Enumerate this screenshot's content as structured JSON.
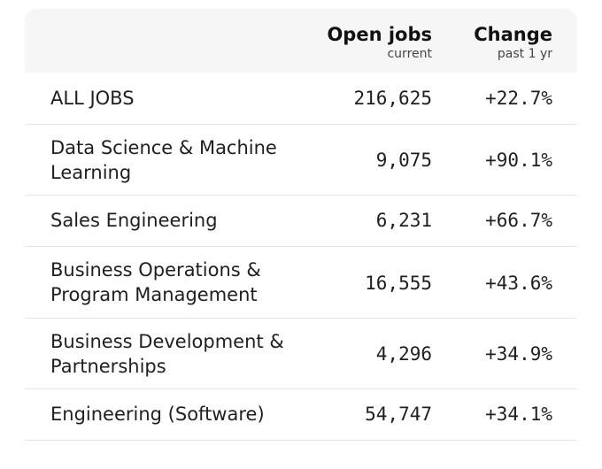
{
  "table": {
    "columns": {
      "open_jobs": {
        "title": "Open jobs",
        "subtitle": "current"
      },
      "change": {
        "title": "Change",
        "subtitle": "past 1 yr"
      }
    },
    "rows": [
      {
        "category": "ALL JOBS",
        "open_jobs": "216,625",
        "change": "+22.7%"
      },
      {
        "category": "Data Science & Machine Learning",
        "open_jobs": "9,075",
        "change": "+90.1%"
      },
      {
        "category": "Sales Engineering",
        "open_jobs": "6,231",
        "change": "+66.7%"
      },
      {
        "category": "Business Operations & Program Management",
        "open_jobs": "16,555",
        "change": "+43.6%"
      },
      {
        "category": "Business Development & Partnerships",
        "open_jobs": "4,296",
        "change": "+34.9%"
      },
      {
        "category": "Engineering (Software)",
        "open_jobs": "54,747",
        "change": "+34.1%"
      }
    ]
  },
  "colors": {
    "header_background": "#f6f6f6",
    "row_background": "#ffffff",
    "row_divider": "#e4e4e4",
    "text": "#1f1f1f"
  }
}
